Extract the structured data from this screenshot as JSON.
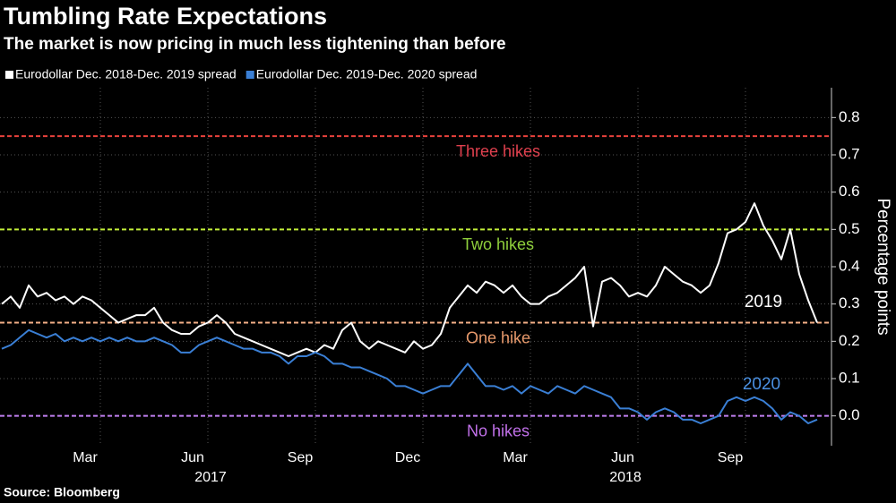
{
  "chart_data": {
    "type": "line",
    "title": "Tumbling Rate Expectations",
    "subtitle": "The market is now pricing in much less tightening than before",
    "source": "Source: Bloomberg",
    "y_label": "Percentage points",
    "years": [
      "2017",
      "2018"
    ],
    "categories": [
      null,
      null,
      null,
      null,
      null,
      null,
      null,
      null,
      null,
      null,
      null,
      "Mar",
      null,
      null,
      null,
      null,
      null,
      null,
      null,
      null,
      null,
      null,
      null,
      "Jun",
      null,
      null,
      null,
      null,
      null,
      null,
      null,
      null,
      null,
      null,
      null,
      "Sep",
      null,
      null,
      null,
      null,
      null,
      null,
      null,
      null,
      null,
      null,
      null,
      "Dec",
      null,
      null,
      null,
      null,
      null,
      null,
      null,
      null,
      null,
      null,
      null,
      "Mar",
      null,
      null,
      null,
      null,
      null,
      null,
      null,
      null,
      null,
      null,
      null,
      "Jun",
      null,
      null,
      null,
      null,
      null,
      null,
      null,
      null,
      null,
      null,
      null,
      "Sep",
      null,
      null,
      null,
      null,
      null,
      null,
      null,
      null
    ],
    "series": [
      {
        "name": "Eurodollar Dec. 2018-Dec. 2019 spread",
        "color": "#ffffff",
        "values": [
          0.3,
          0.32,
          0.29,
          0.35,
          0.32,
          0.33,
          0.31,
          0.32,
          0.3,
          0.32,
          0.31,
          0.29,
          0.27,
          0.25,
          0.26,
          0.27,
          0.27,
          0.29,
          0.25,
          0.23,
          0.22,
          0.22,
          0.24,
          0.25,
          0.27,
          0.25,
          0.22,
          0.21,
          0.2,
          0.19,
          0.18,
          0.17,
          0.16,
          0.17,
          0.18,
          0.17,
          0.19,
          0.18,
          0.23,
          0.25,
          0.2,
          0.18,
          0.2,
          0.19,
          0.18,
          0.17,
          0.2,
          0.18,
          0.19,
          0.22,
          0.29,
          0.32,
          0.35,
          0.33,
          0.36,
          0.35,
          0.33,
          0.35,
          0.32,
          0.3,
          0.3,
          0.32,
          0.33,
          0.35,
          0.37,
          0.4,
          0.24,
          0.36,
          0.37,
          0.35,
          0.32,
          0.33,
          0.32,
          0.35,
          0.4,
          0.38,
          0.36,
          0.35,
          0.33,
          0.35,
          0.41,
          0.49,
          0.5,
          0.52,
          0.57,
          0.51,
          0.47,
          0.42,
          0.5,
          0.38,
          0.31,
          0.25
        ]
      },
      {
        "name": "Eurodollar Dec. 2019-Dec. 2020 spread",
        "color": "#3a7fd5",
        "values": [
          0.18,
          0.19,
          0.21,
          0.23,
          0.22,
          0.21,
          0.22,
          0.2,
          0.21,
          0.2,
          0.21,
          0.2,
          0.21,
          0.2,
          0.21,
          0.2,
          0.2,
          0.21,
          0.2,
          0.19,
          0.17,
          0.17,
          0.19,
          0.2,
          0.21,
          0.2,
          0.19,
          0.18,
          0.18,
          0.17,
          0.17,
          0.16,
          0.14,
          0.16,
          0.16,
          0.17,
          0.16,
          0.14,
          0.14,
          0.13,
          0.13,
          0.12,
          0.11,
          0.1,
          0.08,
          0.08,
          0.07,
          0.06,
          0.07,
          0.08,
          0.08,
          0.11,
          0.14,
          0.11,
          0.08,
          0.08,
          0.07,
          0.08,
          0.06,
          0.08,
          0.07,
          0.06,
          0.08,
          0.07,
          0.06,
          0.08,
          0.07,
          0.06,
          0.05,
          0.02,
          0.02,
          0.01,
          -0.01,
          0.01,
          0.02,
          0.01,
          -0.01,
          -0.01,
          -0.02,
          -0.01,
          0.0,
          0.04,
          0.05,
          0.04,
          0.05,
          0.04,
          0.02,
          -0.01,
          0.01,
          0.0,
          -0.02,
          -0.01
        ]
      }
    ],
    "reference_lines": [
      {
        "value": 0.75,
        "label": "Three hikes",
        "color": "#e8413c",
        "label_color": "#e0404e"
      },
      {
        "value": 0.5,
        "label": "Two hikes",
        "color": "#c4f03a",
        "label_color": "#8fcf3c"
      },
      {
        "value": 0.25,
        "label": "One hike",
        "color": "#f4b088",
        "label_color": "#e89a6c"
      },
      {
        "value": 0,
        "label": "No hikes",
        "color": "#c07ff0",
        "label_color": "#c070e8"
      }
    ],
    "annotations": [
      {
        "text": "2019",
        "color": "#ffffff"
      },
      {
        "text": "2020",
        "color": "#4a90e2"
      }
    ],
    "ylim": [
      -0.08,
      0.88
    ],
    "yticks": [
      {
        "value": 0,
        "label": "0.0"
      },
      0.1,
      0.2,
      0.3,
      0.4,
      0.5,
      0.6,
      0.7,
      0.8
    ],
    "grid": true
  }
}
